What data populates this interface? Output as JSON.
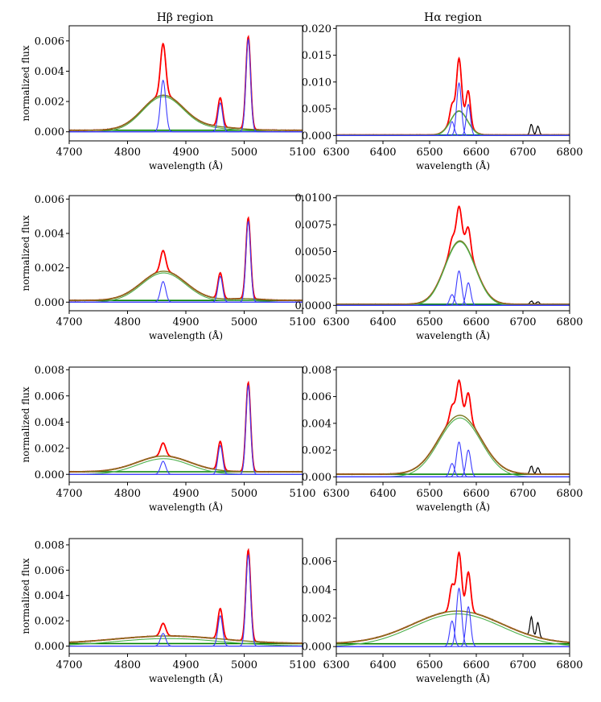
{
  "column_titles": [
    "Hβ region",
    "Hα region"
  ],
  "chart_data": [
    {
      "type": "line",
      "panel": "Hβ row 1",
      "title": "Hβ region",
      "xlabel": "wavelength (Å)",
      "ylabel": "normalized flux",
      "xlim": [
        4700,
        5100
      ],
      "ylim": [
        -0.0006,
        0.007
      ],
      "xticks": [
        4700,
        4800,
        4900,
        5000,
        5100
      ],
      "yticks": [
        0.0,
        0.002,
        0.004,
        0.006
      ],
      "ytick_labels": [
        "0.000",
        "0.002",
        "0.004",
        "0.006"
      ],
      "grid": false,
      "cont": 0.0001,
      "sat": 0,
      "components": {
        "broad": [
          {
            "c": 4861,
            "s": 35,
            "a": 0.0023
          }
        ],
        "narrow": [
          {
            "c": 4861,
            "s": 4.5,
            "a": 0.0034
          },
          {
            "c": 4959,
            "s": 4,
            "a": 0.0019
          },
          {
            "c": 5007,
            "s": 4,
            "a": 0.0061
          }
        ],
        "wings": [
          {
            "c": 4950,
            "s": 40,
            "a": 0.0002
          }
        ]
      },
      "series_colors": {
        "data": "#000000",
        "total": "#ff0000",
        "broad": "#4cb04c",
        "narrow": "#3b3bff",
        "cont": "#008000",
        "broadfit": "#7a7a20"
      }
    },
    {
      "type": "line",
      "panel": "Hα row 1",
      "title": "Hα region",
      "xlabel": "wavelength (Å)",
      "ylabel": "",
      "xlim": [
        6300,
        6800
      ],
      "ylim": [
        -0.001,
        0.0205
      ],
      "xticks": [
        6300,
        6400,
        6500,
        6600,
        6700,
        6800
      ],
      "yticks": [
        0.0,
        0.005,
        0.01,
        0.015,
        0.02
      ],
      "ytick_labels": [
        "0.000",
        "0.005",
        "0.010",
        "0.015",
        "0.020"
      ],
      "grid": false,
      "cont": 0.0001,
      "sat": 0.002,
      "components": {
        "broad": [
          {
            "c": 6563,
            "s": 18,
            "a": 0.0045
          }
        ],
        "narrow": [
          {
            "c": 6548,
            "s": 4.5,
            "a": 0.0026
          },
          {
            "c": 6563,
            "s": 5,
            "a": 0.0098
          },
          {
            "c": 6583,
            "s": 4.5,
            "a": 0.0058
          }
        ],
        "wings": []
      },
      "series_colors": {
        "data": "#000000",
        "total": "#ff0000",
        "broad": "#4cb04c",
        "narrow": "#3b3bff",
        "cont": "#008000",
        "broadfit": "#7a7a20"
      }
    },
    {
      "type": "line",
      "panel": "Hβ row 2",
      "xlabel": "wavelength (Å)",
      "ylabel": "normalized flux",
      "xlim": [
        4700,
        5100
      ],
      "ylim": [
        -0.0005,
        0.0062
      ],
      "xticks": [
        4700,
        4800,
        4900,
        5000,
        5100
      ],
      "yticks": [
        0.0,
        0.002,
        0.004,
        0.006
      ],
      "ytick_labels": [
        "0.000",
        "0.002",
        "0.004",
        "0.006"
      ],
      "grid": false,
      "cont": 0.0001,
      "sat": 0,
      "components": {
        "broad": [
          {
            "c": 4862,
            "s": 38,
            "a": 0.0017
          }
        ],
        "narrow": [
          {
            "c": 4861,
            "s": 4.5,
            "a": 0.0012
          },
          {
            "c": 4959,
            "s": 4,
            "a": 0.0015
          },
          {
            "c": 5007,
            "s": 4,
            "a": 0.0047
          }
        ],
        "wings": [
          {
            "c": 5000,
            "s": 30,
            "a": 0.0001
          }
        ]
      },
      "series_colors": {
        "data": "#000000",
        "total": "#ff0000",
        "broad": "#4cb04c",
        "narrow": "#3b3bff",
        "cont": "#008000",
        "broadfit": "#7a7a20"
      }
    },
    {
      "type": "line",
      "panel": "Hα row 2",
      "xlabel": "wavelength (Å)",
      "ylabel": "",
      "xlim": [
        6300,
        6800
      ],
      "ylim": [
        -0.0005,
        0.0102
      ],
      "xticks": [
        6300,
        6400,
        6500,
        6600,
        6700,
        6800
      ],
      "yticks": [
        0.0,
        0.0025,
        0.005,
        0.0075,
        0.01
      ],
      "ytick_labels": [
        "0.0000",
        "0.0025",
        "0.0050",
        "0.0075",
        "0.0100"
      ],
      "grid": false,
      "cont": 0.0001,
      "sat": 0.0003,
      "components": {
        "broad": [
          {
            "c": 6565,
            "s": 32,
            "a": 0.0059
          }
        ],
        "narrow": [
          {
            "c": 6548,
            "s": 5,
            "a": 0.001
          },
          {
            "c": 6563,
            "s": 5.5,
            "a": 0.0032
          },
          {
            "c": 6583,
            "s": 5,
            "a": 0.0021
          }
        ],
        "wings": []
      },
      "series_colors": {
        "data": "#000000",
        "total": "#ff0000",
        "broad": "#4cb04c",
        "narrow": "#3b3bff",
        "cont": "#008000",
        "broadfit": "#7a7a20"
      }
    },
    {
      "type": "line",
      "panel": "Hβ row 3",
      "xlabel": "wavelength (Å)",
      "ylabel": "normalized flux",
      "xlim": [
        4700,
        5100
      ],
      "ylim": [
        -0.0006,
        0.0082
      ],
      "xticks": [
        4700,
        4800,
        4900,
        5000,
        5100
      ],
      "yticks": [
        0.0,
        0.002,
        0.004,
        0.006,
        0.008
      ],
      "ytick_labels": [
        "0.000",
        "0.002",
        "0.004",
        "0.006",
        "0.008"
      ],
      "grid": false,
      "cont": 0.0002,
      "sat": 0,
      "components": {
        "broad": [
          {
            "c": 4862,
            "s": 45,
            "a": 0.0012
          }
        ],
        "narrow": [
          {
            "c": 4861,
            "s": 4.5,
            "a": 0.001
          },
          {
            "c": 4959,
            "s": 4,
            "a": 0.0022
          },
          {
            "c": 5007,
            "s": 4,
            "a": 0.0068
          }
        ],
        "wings": []
      },
      "series_colors": {
        "data": "#000000",
        "total": "#ff0000",
        "broad": "#4cb04c",
        "narrow": "#3b3bff",
        "cont": "#008000",
        "broadfit": "#7a7a20"
      }
    },
    {
      "type": "line",
      "panel": "Hα row 3",
      "xlabel": "wavelength (Å)",
      "ylabel": "",
      "xlim": [
        6300,
        6800
      ],
      "ylim": [
        -0.0004,
        0.0082
      ],
      "xticks": [
        6300,
        6400,
        6500,
        6600,
        6700,
        6800
      ],
      "yticks": [
        0.0,
        0.002,
        0.004,
        0.006,
        0.008
      ],
      "ytick_labels": [
        "0.000",
        "0.002",
        "0.004",
        "0.006",
        "0.008"
      ],
      "grid": false,
      "cont": 0.0002,
      "sat": 0.0006,
      "components": {
        "broad": [
          {
            "c": 6565,
            "s": 45,
            "a": 0.0044
          }
        ],
        "narrow": [
          {
            "c": 6548,
            "s": 5,
            "a": 0.001
          },
          {
            "c": 6563,
            "s": 5.5,
            "a": 0.0026
          },
          {
            "c": 6583,
            "s": 5,
            "a": 0.002
          }
        ],
        "wings": []
      },
      "series_colors": {
        "data": "#000000",
        "total": "#ff0000",
        "broad": "#4cb04c",
        "narrow": "#3b3bff",
        "cont": "#008000",
        "broadfit": "#7a7a20"
      }
    },
    {
      "type": "line",
      "panel": "Hβ row 4",
      "xlabel": "wavelength (Å)",
      "ylabel": "normalized flux",
      "xlim": [
        4700,
        5100
      ],
      "ylim": [
        -0.0006,
        0.0085
      ],
      "xticks": [
        4700,
        4800,
        4900,
        5000,
        5100
      ],
      "yticks": [
        0.0,
        0.002,
        0.004,
        0.006,
        0.008
      ],
      "ytick_labels": [
        "0.000",
        "0.002",
        "0.004",
        "0.006",
        "0.008"
      ],
      "grid": false,
      "cont": 0.0002,
      "sat": 0,
      "components": {
        "broad": [
          {
            "c": 4870,
            "s": 90,
            "a": 0.0006
          }
        ],
        "narrow": [
          {
            "c": 4861,
            "s": 4.5,
            "a": 0.001
          },
          {
            "c": 4959,
            "s": 4,
            "a": 0.0024
          },
          {
            "c": 5007,
            "s": 4,
            "a": 0.0072
          }
        ],
        "wings": []
      },
      "series_colors": {
        "data": "#000000",
        "total": "#ff0000",
        "broad": "#4cb04c",
        "narrow": "#3b3bff",
        "cont": "#008000",
        "broadfit": "#7a7a20"
      }
    },
    {
      "type": "line",
      "panel": "Hα row 4",
      "xlabel": "wavelength (Å)",
      "ylabel": "",
      "xlim": [
        6300,
        6800
      ],
      "ylim": [
        -0.0005,
        0.0076
      ],
      "xticks": [
        6300,
        6400,
        6500,
        6600,
        6700,
        6800
      ],
      "yticks": [
        0.0,
        0.002,
        0.004,
        0.006
      ],
      "ytick_labels": [
        "0.000",
        "0.002",
        "0.004",
        "0.006"
      ],
      "grid": false,
      "cont": 0.0002,
      "sat": 0.0013,
      "components": {
        "broad": [
          {
            "c": 6560,
            "s": 95,
            "a": 0.0023
          }
        ],
        "narrow": [
          {
            "c": 6548,
            "s": 5,
            "a": 0.0018
          },
          {
            "c": 6563,
            "s": 5.5,
            "a": 0.0041
          },
          {
            "c": 6583,
            "s": 5,
            "a": 0.0028
          }
        ],
        "wings": []
      },
      "series_colors": {
        "data": "#000000",
        "total": "#ff0000",
        "broad": "#4cb04c",
        "narrow": "#3b3bff",
        "cont": "#008000",
        "broadfit": "#7a7a20"
      }
    }
  ]
}
